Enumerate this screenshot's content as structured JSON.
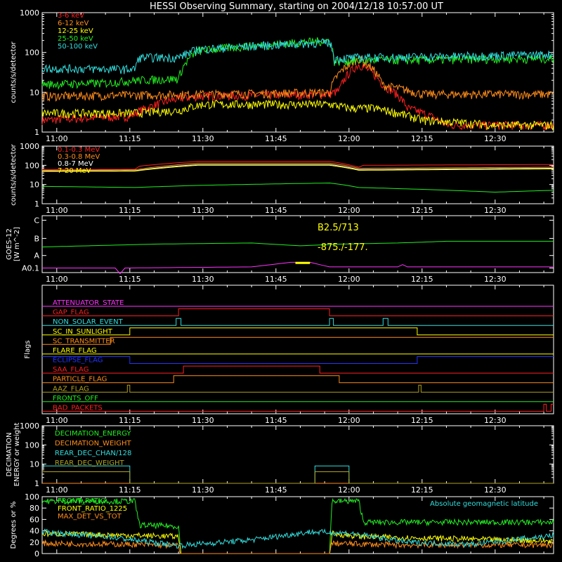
{
  "page_title": "HESSI Observing Summary, starting on 2004/12/18 10:57:00 UT",
  "time_ticks": [
    "11:00",
    "11:15",
    "11:30",
    "11:45",
    "12:00",
    "12:15",
    "12:30"
  ],
  "time_tick_minutes": [
    180,
    195,
    210,
    225,
    240,
    255,
    270
  ],
  "colors": {
    "red": "#ff2020",
    "orange": "#ff8c1a",
    "yellow": "#ffff00",
    "green": "#22ee22",
    "cyan": "#33dddd",
    "magenta": "#ff33ff",
    "blue": "#2233ff",
    "olive": "#b0a020",
    "white": "#ffffff"
  },
  "chart_data": [
    {
      "type": "line",
      "panel": "rates_low",
      "ylabel": "counts/s/detector",
      "yscale": "log",
      "ylim": [
        1,
        1000
      ],
      "ytick_labels": [
        "1",
        "10",
        "100",
        "1000"
      ],
      "ytick_values": [
        1,
        10,
        100,
        1000
      ],
      "xlim": [
        177,
        282
      ],
      "series": [
        {
          "name": "3-6 keV",
          "color": "red",
          "x": [
            177,
            195,
            205,
            210,
            236,
            238,
            242,
            247,
            252,
            260,
            270,
            282
          ],
          "y": [
            2,
            2.5,
            7,
            8,
            9,
            11,
            50,
            15,
            4,
            1.5,
            1.5,
            1.5
          ]
        },
        {
          "name": "6-12 keV",
          "color": "orange",
          "x": [
            177,
            195,
            210,
            236,
            242,
            247,
            255,
            265,
            282
          ],
          "y": [
            8,
            8.5,
            9,
            10,
            70,
            15,
            9,
            9,
            9
          ]
        },
        {
          "name": "12-25 keV",
          "color": "yellow",
          "x": [
            177,
            195,
            205,
            210,
            236,
            240,
            245,
            250,
            255,
            270,
            282
          ],
          "y": [
            3,
            3,
            3.5,
            5,
            5,
            4,
            4,
            3,
            2,
            1.5,
            1.5
          ]
        },
        {
          "name": "25-50 keV",
          "color": "green",
          "x": [
            177,
            190,
            196,
            205,
            209,
            236,
            237,
            245,
            255,
            270,
            282
          ],
          "y": [
            16,
            17,
            20,
            22,
            110,
            200,
            60,
            65,
            65,
            70,
            70
          ]
        },
        {
          "name": "50-100 keV",
          "color": "cyan",
          "x": [
            177,
            196,
            197,
            205,
            209,
            236,
            237,
            242,
            260,
            282
          ],
          "y": [
            40,
            38,
            75,
            75,
            120,
            180,
            70,
            75,
            80,
            90
          ]
        }
      ]
    },
    {
      "type": "line",
      "panel": "rates_high",
      "ylabel": "counts/s/detector",
      "yscale": "log",
      "ylim": [
        1,
        1000
      ],
      "ytick_labels": [
        "1",
        "10",
        "100",
        "1000"
      ],
      "ytick_values": [
        1,
        10,
        100,
        1000
      ],
      "xlim": [
        177,
        282
      ],
      "series": [
        {
          "name": "0.1-0.3 MeV",
          "color": "red",
          "x": [
            177,
            196,
            197,
            209,
            236,
            242,
            243,
            282
          ],
          "y": [
            60,
            62,
            90,
            160,
            160,
            80,
            100,
            110
          ]
        },
        {
          "name": "0.3-0.8 MeV",
          "color": "orange",
          "x": [
            177,
            196,
            209,
            236,
            242,
            282
          ],
          "y": [
            55,
            58,
            130,
            130,
            70,
            80
          ]
        },
        {
          "name": "0.8-7 MeV",
          "color": "white",
          "x": [
            177,
            196,
            209,
            236,
            242,
            282
          ],
          "y": [
            50,
            52,
            110,
            110,
            60,
            70
          ]
        },
        {
          "name": "7-20 MeV",
          "color": "yellow",
          "x": [
            177,
            196,
            209,
            236,
            242,
            282
          ],
          "y": [
            48,
            50,
            100,
            100,
            55,
            65
          ]
        },
        {
          "name": "",
          "color": "green",
          "x": [
            177,
            196,
            209,
            236,
            242,
            270,
            282
          ],
          "y": [
            8,
            7,
            9,
            12,
            7,
            4,
            5
          ]
        }
      ]
    },
    {
      "type": "line",
      "panel": "goes",
      "ylabel": "GOES-12 [W m^-2]",
      "ytick_labels": [
        "A0.1",
        "A",
        "B",
        "C"
      ],
      "annotations": [
        "B2.5/713",
        "-875./-177."
      ],
      "series": [
        {
          "name": "",
          "color": "green",
          "x": [
            177,
            200,
            220,
            230,
            238,
            250,
            260,
            282
          ],
          "y": [
            0.55,
            0.5,
            0.48,
            0.53,
            0.5,
            0.48,
            0.45,
            0.45
          ]
        },
        {
          "name": "",
          "color": "magenta",
          "x": [
            177,
            192,
            193,
            194,
            220,
            228,
            232,
            236,
            245,
            250,
            251,
            252,
            282
          ],
          "y": [
            0.92,
            0.92,
            1.02,
            0.92,
            0.9,
            0.82,
            0.82,
            0.9,
            0.9,
            0.9,
            0.86,
            0.9,
            0.9
          ]
        },
        {
          "name": "",
          "color": "yellow",
          "x": [
            229,
            232
          ],
          "y": [
            0.83,
            0.83
          ]
        }
      ]
    },
    {
      "type": "line",
      "panel": "flags",
      "ylabel": "Flags",
      "series": [
        {
          "name": "ATTENUATOR_STATE",
          "color": "magenta",
          "x": [
            177,
            282
          ],
          "y": [
            0,
            0
          ]
        },
        {
          "name": "GAP_FLAG",
          "color": "red",
          "x": [
            177,
            205,
            205,
            236,
            236,
            282
          ],
          "y": [
            0,
            0,
            1,
            1,
            0,
            0
          ]
        },
        {
          "name": "NON_SOLAR_EVENT",
          "color": "cyan",
          "x": [
            177,
            204.5,
            204.5,
            205.5,
            205.5,
            236,
            236,
            236.8,
            236.8,
            247,
            247,
            248,
            248,
            282
          ],
          "y": [
            0,
            0,
            1,
            1,
            0,
            0,
            1,
            1,
            0,
            0,
            1,
            1,
            0,
            0
          ]
        },
        {
          "name": "SC_IN_SUNLIGHT",
          "color": "yellow",
          "x": [
            177,
            195,
            195,
            254,
            254,
            282
          ],
          "y": [
            0,
            0,
            1,
            1,
            0,
            0
          ]
        },
        {
          "name": "SC_TRANSMITTER",
          "color": "orange",
          "x": [
            177,
            191,
            191,
            282
          ],
          "y": [
            0,
            0,
            1,
            1
          ]
        },
        {
          "name": "FLARE_FLAG",
          "color": "yellow",
          "x": [
            177,
            282
          ],
          "y": [
            0,
            0
          ]
        },
        {
          "name": "ECLIPSE_FLAG",
          "color": "blue",
          "x": [
            177,
            195,
            195,
            254,
            254,
            282
          ],
          "y": [
            1,
            1,
            0,
            0,
            1,
            1
          ]
        },
        {
          "name": "SAA_FLAG",
          "color": "red",
          "x": [
            177,
            206,
            206,
            234,
            234,
            282
          ],
          "y": [
            0,
            0,
            1,
            1,
            0,
            0
          ]
        },
        {
          "name": "PARTICLE_FLAG",
          "color": "orange",
          "x": [
            177,
            204,
            204,
            238,
            238,
            282
          ],
          "y": [
            0,
            0,
            1,
            1,
            0,
            0
          ]
        },
        {
          "name": "AAZ_FLAG",
          "color": "olive",
          "x": [
            177,
            194.5,
            194.5,
            195,
            195,
            254.3,
            254.3,
            254.8,
            254.8,
            282
          ],
          "y": [
            0,
            0,
            1,
            1,
            0,
            0,
            1,
            1,
            0,
            0
          ]
        },
        {
          "name": "FRONTS_OFF",
          "color": "green",
          "x": [
            177,
            282
          ],
          "y": [
            0,
            0
          ]
        },
        {
          "name": "BAD_PACKETS",
          "color": "red",
          "x": [
            177,
            280,
            280,
            280.5,
            280.5,
            281.5,
            281.5,
            282
          ],
          "y": [
            0,
            0,
            1,
            1,
            0,
            0,
            1,
            1
          ]
        }
      ]
    },
    {
      "type": "line",
      "panel": "decimation",
      "ylabel": "DECIMATION ENERGY or weight",
      "yscale": "log",
      "ylim": [
        1,
        1000
      ],
      "ytick_labels": [
        "1",
        "10",
        "100",
        "1000"
      ],
      "ytick_values": [
        1,
        10,
        100,
        1000
      ],
      "series": [
        {
          "name": "DECIMATION_ENERGY",
          "color": "green",
          "x": [
            177,
            282
          ],
          "y": [
            1,
            1
          ]
        },
        {
          "name": "DECIMATION_WEIGHT",
          "color": "orange",
          "x": [
            177,
            282
          ],
          "y": [
            1,
            1
          ]
        },
        {
          "name": "REAR_DEC_CHAN/128",
          "color": "cyan",
          "x": [
            177,
            195,
            195,
            233,
            233,
            240,
            240,
            282
          ],
          "y": [
            8,
            8,
            1,
            1,
            8,
            8,
            1,
            1
          ]
        },
        {
          "name": "REAR_DEC_WEIGHT",
          "color": "olive",
          "x": [
            177,
            195,
            195,
            233,
            233,
            240,
            240,
            282
          ],
          "y": [
            4,
            4,
            1,
            1,
            4,
            4,
            1,
            1
          ]
        }
      ]
    },
    {
      "type": "line",
      "panel": "ratios",
      "ylabel": "Degrees or %",
      "ylim": [
        0,
        100
      ],
      "ytick_labels": [
        "0",
        "20",
        "40",
        "60",
        "80",
        "100"
      ],
      "ytick_values": [
        0,
        20,
        40,
        60,
        80,
        100
      ],
      "series": [
        {
          "name": "FRONT_RATIO",
          "color": "green",
          "x": [
            177,
            196,
            197,
            205,
            205.5,
            236,
            236.5,
            242,
            243,
            282
          ],
          "y": [
            92,
            92,
            50,
            48,
            0,
            0,
            92,
            92,
            55,
            55
          ]
        },
        {
          "name": "FRONT_RATIO_1225",
          "color": "yellow",
          "x": [
            177,
            196,
            205,
            205.5,
            236,
            236.5,
            242,
            282
          ],
          "y": [
            35,
            32,
            30,
            0,
            0,
            35,
            30,
            22
          ]
        },
        {
          "name": "MAX_DET_VS_TOT",
          "color": "orange",
          "x": [
            177,
            196,
            205,
            205.5,
            236,
            236.5,
            250,
            282
          ],
          "y": [
            18,
            16,
            14,
            0,
            0,
            18,
            15,
            15
          ]
        },
        {
          "name": "Absolute geomagnetic latitude",
          "color": "cyan",
          "x": [
            177,
            190,
            205,
            220,
            232,
            240,
            252,
            265,
            282
          ],
          "y": [
            38,
            30,
            14,
            24,
            38,
            36,
            20,
            16,
            32
          ]
        }
      ]
    }
  ]
}
